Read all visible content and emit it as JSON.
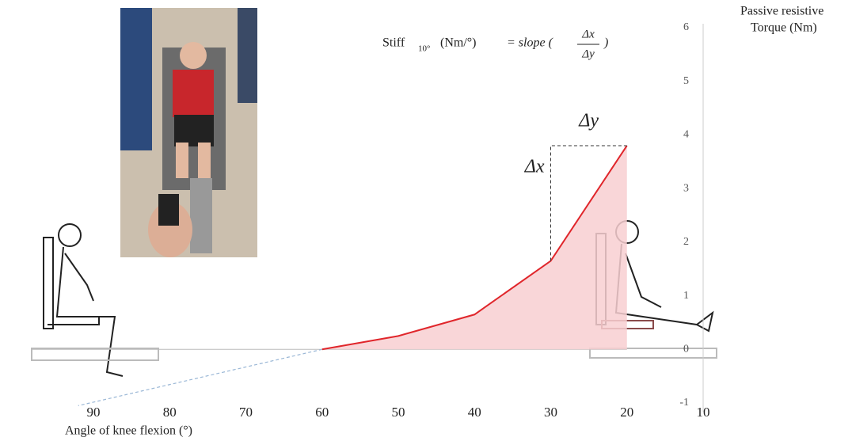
{
  "chart_data": {
    "type": "line",
    "formula": {
      "lhs": "Stiff",
      "sub": "10°",
      "unit": "(Nm/°)",
      "rhs": "= slope (",
      "num": "Δx",
      "den": "Δy",
      "close": ")"
    },
    "delta_x_label": "Δx",
    "delta_y_label": "Δy",
    "x_label": "Angle of knee flexion (°)",
    "y_label": [
      "Passive resistive",
      "Torque (Nm)"
    ],
    "x": [
      60,
      50,
      40,
      30,
      20
    ],
    "series": [
      {
        "color": "#e0262b",
        "fill": "#f8cfd1",
        "values": [
          0,
          0.25,
          0.65,
          1.65,
          3.8
        ]
      },
      {
        "color": "#9ab7d6",
        "dashed": true,
        "x": [
          60,
          92
        ],
        "values": [
          0,
          -1.05
        ]
      }
    ],
    "xlim": [
      90,
      10
    ],
    "xticks": [
      90,
      80,
      70,
      60,
      50,
      40,
      30,
      20,
      10
    ],
    "ylim": [
      -1,
      6
    ],
    "yticks": [
      -1,
      0,
      1,
      2,
      3,
      4,
      5,
      6
    ]
  }
}
